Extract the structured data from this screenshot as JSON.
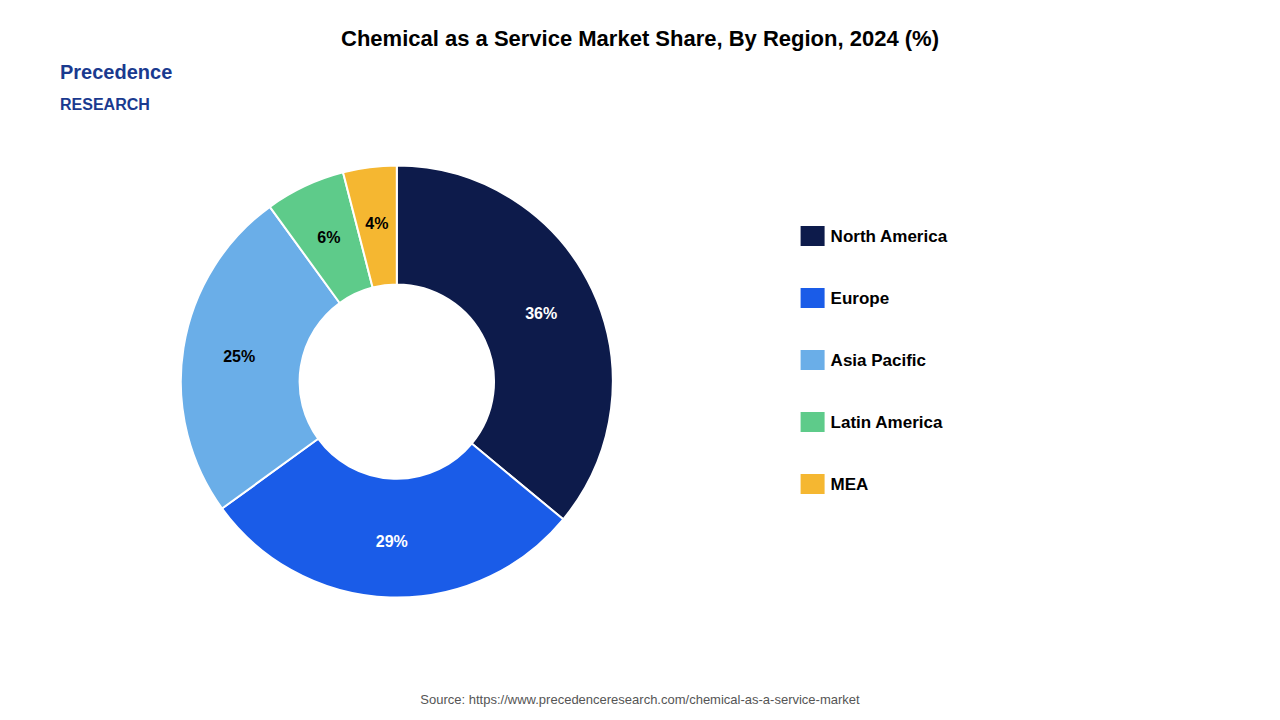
{
  "chart_data": {
    "type": "pie",
    "title": "Chemical as a Service Market Share, By Region, 2024 (%)",
    "categories": [
      "North America",
      "Europe",
      "Asia Pacific",
      "Latin America",
      "MEA"
    ],
    "values": [
      36,
      29,
      25,
      6,
      4
    ],
    "value_labels": [
      "36%",
      "29%",
      "25%",
      "6%",
      "4%"
    ],
    "colors": [
      "#0d1b4b",
      "#1a5ce8",
      "#6aaee8",
      "#5ecb8a",
      "#f5b731"
    ],
    "data_labels": true,
    "legend": "right",
    "source": "Source: https://www.precedenceresearch.com/chemical-as-a-service-market",
    "annotations": [
      "Precedence",
      "RESEARCH"
    ]
  }
}
